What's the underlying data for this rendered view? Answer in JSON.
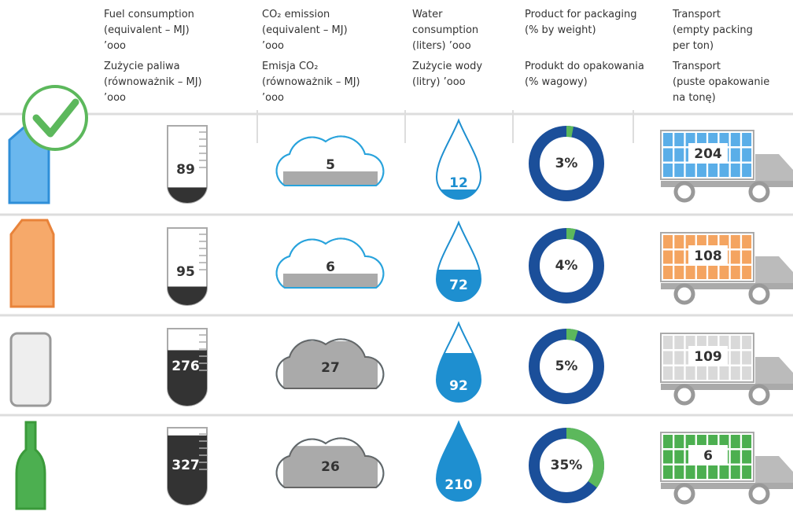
{
  "headers": [
    {
      "en": [
        "Fuel consumption",
        "(equivalent – MJ)",
        "’ooo"
      ],
      "pl": [
        "Zużycie paliwa",
        "(równoważnik – MJ)",
        "’ooo"
      ]
    },
    {
      "en": [
        "CO₂ emission",
        "(equivalent – MJ)",
        "’ooo"
      ],
      "pl": [
        "Emisja CO₂",
        "(równoważnik – MJ)",
        "’ooo"
      ]
    },
    {
      "en": [
        "Water",
        "consumption",
        "(liters) ’ooo"
      ],
      "pl": [
        "Zużycie wody",
        "(litry) ’ooo"
      ]
    },
    {
      "en": [
        "Product for packaging",
        "(% by weight)"
      ],
      "pl": [
        "Produkt do opakowania",
        "(% wagowy)"
      ]
    },
    {
      "en": [
        "Transport",
        "(empty packing",
        "per ton)"
      ],
      "pl": [
        "Transport",
        "(puste opakowanie",
        "na tonę)"
      ]
    }
  ],
  "rows": [
    {
      "fuel": 89,
      "co2": 5,
      "water": 12,
      "packaging": {
        "value": 3,
        "label": "3%"
      },
      "transport": 204
    },
    {
      "fuel": 95,
      "co2": 6,
      "water": 72,
      "packaging": {
        "value": 4,
        "label": "4%"
      },
      "transport": 108
    },
    {
      "fuel": 276,
      "co2": 27,
      "water": 92,
      "packaging": {
        "value": 5,
        "label": "5%"
      },
      "transport": 109
    },
    {
      "fuel": 327,
      "co2": 26,
      "water": 210,
      "packaging": {
        "value": 35,
        "label": "35%"
      },
      "transport": 6
    }
  ]
}
